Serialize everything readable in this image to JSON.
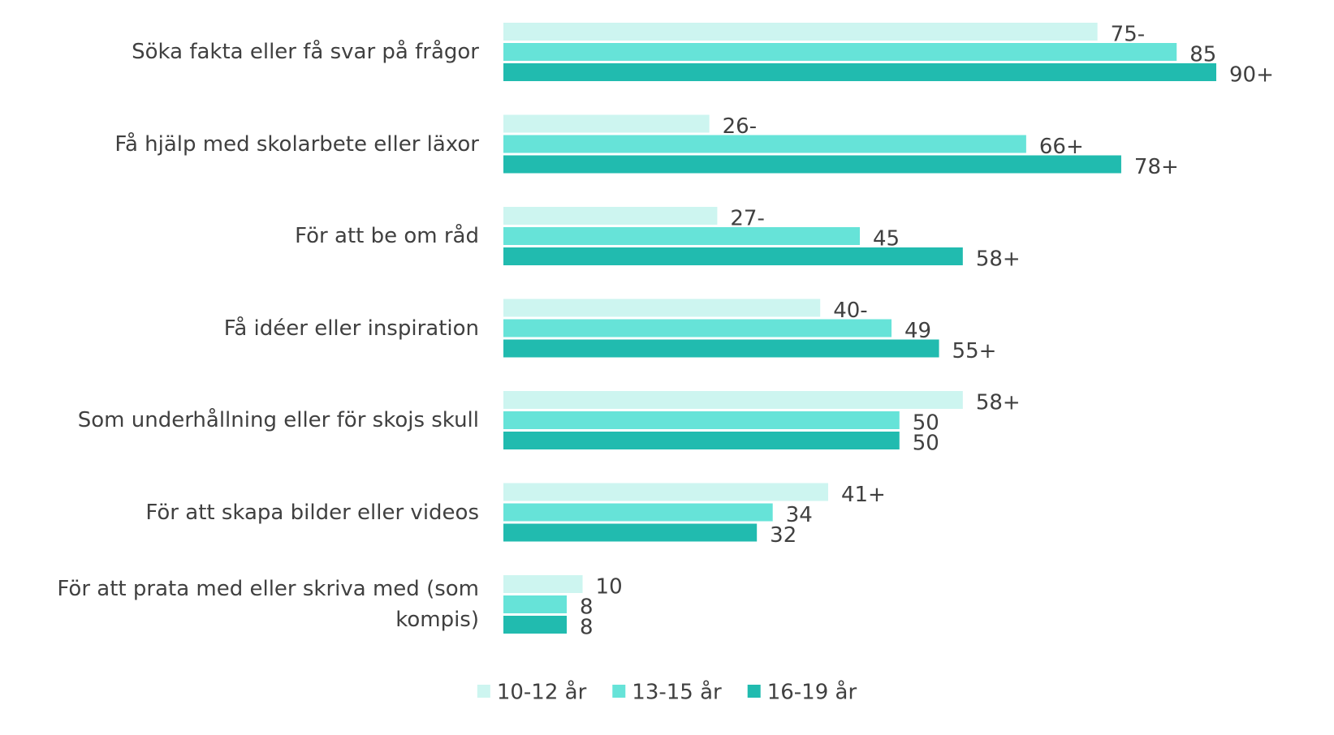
{
  "chart_data": {
    "type": "bar",
    "orientation": "horizontal",
    "categories": [
      "Söka fakta eller få svar på frågor",
      "Få hjälp med skolarbete eller läxor",
      "För att be om råd",
      "Få idéer eller inspiration",
      "Som underhållning eller för skojs skull",
      "För att skapa bilder eller videos",
      "För att prata med eller skriva med (som kompis)"
    ],
    "series": [
      {
        "name": "10-12 år",
        "color": "#cdf5f0",
        "values": [
          75,
          26,
          27,
          40,
          58,
          41,
          10
        ],
        "value_labels": [
          "75-",
          "26-",
          "27-",
          "40-",
          "58+",
          "41+",
          "10"
        ]
      },
      {
        "name": "13-15 år",
        "color": "#66e3d8",
        "values": [
          85,
          66,
          45,
          49,
          50,
          34,
          8
        ],
        "value_labels": [
          "85",
          "66+",
          "45",
          "49",
          "50",
          "34",
          "8"
        ]
      },
      {
        "name": "16-19 år",
        "color": "#21bbaf",
        "values": [
          90,
          78,
          58,
          55,
          50,
          32,
          8
        ],
        "value_labels": [
          "90+",
          "78+",
          "58+",
          "55+",
          "50",
          "32",
          "8"
        ]
      }
    ],
    "legend": "bottom"
  }
}
